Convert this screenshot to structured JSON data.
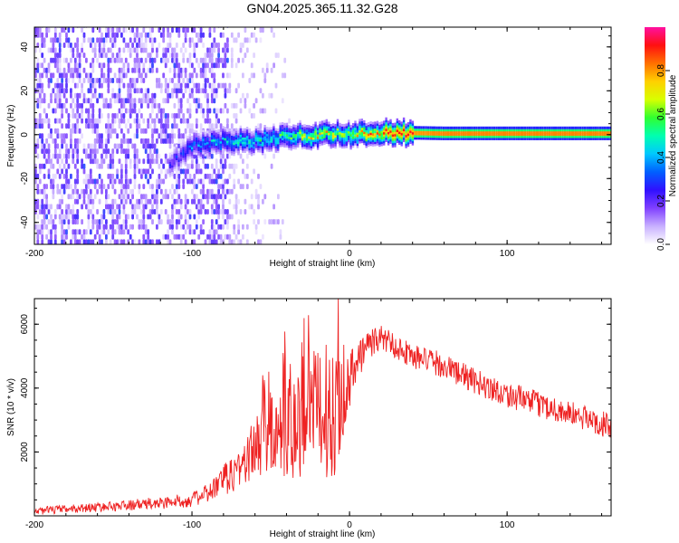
{
  "title": "GN04.2025.365.11.32.G28",
  "chart_data": [
    {
      "type": "heatmap",
      "title": "GN04.2025.365.11.32.G28",
      "xlabel": "Height of straight line (km)",
      "ylabel": "Frequency (Hz)",
      "xlim": [
        -200,
        166
      ],
      "ylim": [
        -50,
        49
      ],
      "x_ticks": [
        -200,
        -100,
        0,
        100
      ],
      "y_ticks": [
        -40,
        -20,
        0,
        20,
        40
      ],
      "colorbar": {
        "label": "Normalized spectral amplitude",
        "range": [
          0.0,
          1.0
        ],
        "ticks": [
          0.0,
          0.2,
          0.4,
          0.6,
          0.8
        ],
        "colormap": [
          "#ffffff",
          "#c8b0ff",
          "#8040ff",
          "#3010ff",
          "#0060ff",
          "#00c8ff",
          "#00ffb0",
          "#30ff30",
          "#d8ff00",
          "#ffd000",
          "#ff7000",
          "#ff1010",
          "#ff10a0"
        ]
      },
      "ridge": {
        "description_points_x": [
          -115,
          -100,
          -80,
          -60,
          -40,
          -20,
          0,
          20,
          60,
          100,
          166
        ],
        "description_points_freq": [
          -14,
          -5,
          -3,
          -3,
          -1,
          0,
          0,
          1,
          0.5,
          0.5,
          0.5
        ],
        "amplitude": [
          0.25,
          0.4,
          0.5,
          0.55,
          0.6,
          0.8,
          0.75,
          0.9,
          0.95,
          0.95,
          0.95
        ]
      },
      "noise_region_x": [
        -200,
        -78
      ]
    },
    {
      "type": "line",
      "xlabel": "Height of straight line (km)",
      "ylabel": "SNR (10 * v/v)",
      "xlim": [
        -200,
        166
      ],
      "ylim": [
        0,
        6800
      ],
      "x_ticks": [
        -200,
        -100,
        0,
        100
      ],
      "y_ticks": [
        2000,
        4000,
        6000
      ],
      "color": "#ee2222",
      "envelope": {
        "x": [
          -200,
          -150,
          -120,
          -100,
          -90,
          -80,
          -70,
          -60,
          -50,
          -40,
          -30,
          -20,
          -10,
          0,
          10,
          20,
          30,
          40,
          60,
          80,
          100,
          120,
          140,
          166
        ],
        "mean": [
          150,
          300,
          400,
          500,
          700,
          1100,
          1500,
          2100,
          2600,
          2700,
          3000,
          3300,
          3300,
          4300,
          5300,
          5600,
          5300,
          5000,
          4700,
          4200,
          3800,
          3500,
          3200,
          2800
        ],
        "spread": [
          120,
          150,
          200,
          220,
          300,
          500,
          700,
          1000,
          1300,
          1600,
          1800,
          2000,
          2200,
          900,
          500,
          400,
          400,
          400,
          400,
          400,
          400,
          400,
          400,
          400
        ]
      }
    }
  ]
}
